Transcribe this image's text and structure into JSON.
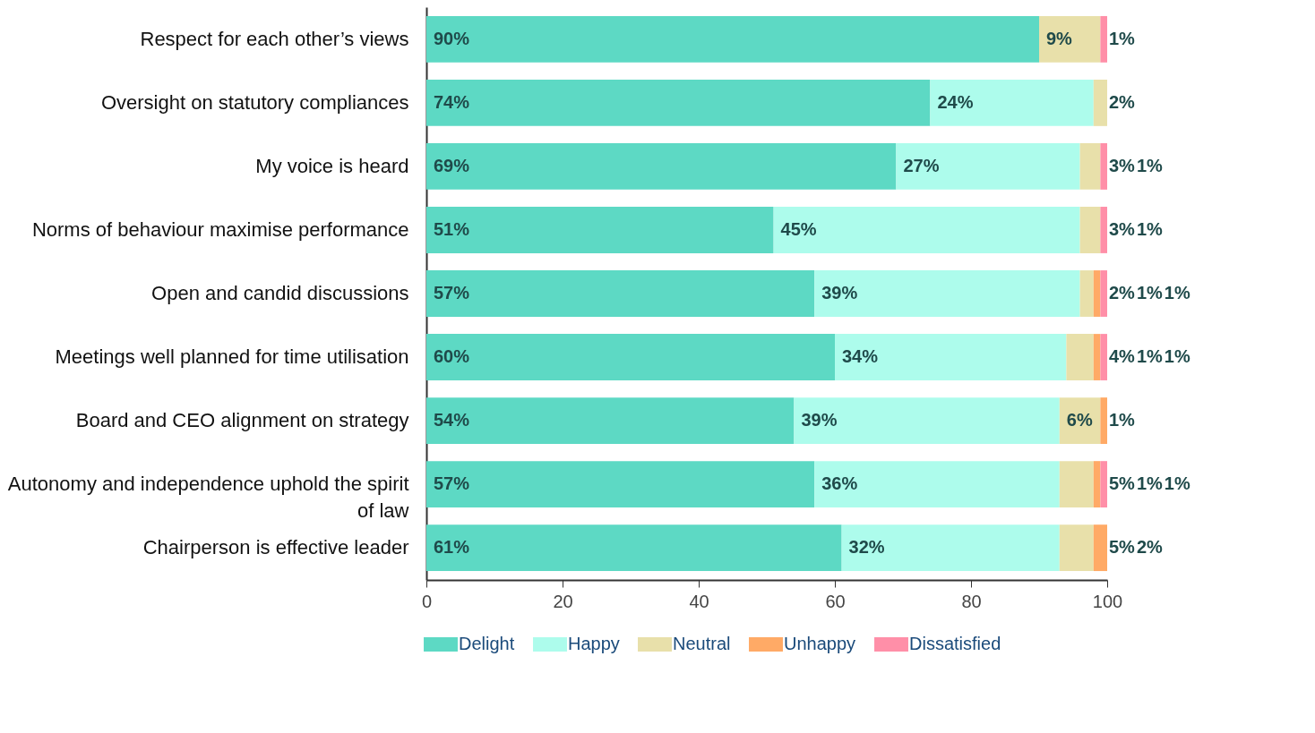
{
  "chart_data": {
    "type": "bar",
    "orientation": "horizontal",
    "stacked": true,
    "categories": [
      "Respect for each other’s views",
      "Oversight on statutory compliances",
      "My voice is heard",
      "Norms of behaviour maximise performance",
      "Open and candid discussions",
      "Meetings well planned for time utilisation",
      "Board and CEO alignment on strategy",
      "Autonomy and independence uphold the spirit of law",
      "Chairperson is effective leader"
    ],
    "series": [
      {
        "name": "Delight",
        "color": "#5dd9c4",
        "values": [
          90,
          74,
          69,
          51,
          57,
          60,
          54,
          57,
          61
        ],
        "value_labels": [
          "90%",
          "74%",
          "69%",
          "51%",
          "57%",
          "60%",
          "54%",
          "57%",
          "61%"
        ]
      },
      {
        "name": "Happy",
        "color": "#adfcec",
        "values": [
          null,
          24,
          27,
          45,
          39,
          34,
          39,
          36,
          32
        ],
        "value_labels": [
          null,
          "24%",
          "27%",
          "45%",
          "39%",
          "34%",
          "39%",
          "36%",
          "32%"
        ]
      },
      {
        "name": "Neutral",
        "color": "#e8e0aa",
        "values": [
          9,
          2,
          3,
          3,
          2,
          4,
          6,
          5,
          5
        ],
        "value_labels": [
          "9%",
          "2%",
          "3%",
          "3%",
          "2%",
          "4%",
          "6%",
          "5%",
          "5%"
        ]
      },
      {
        "name": "Unhappy",
        "color": "#ffaa66",
        "values": [
          null,
          null,
          null,
          null,
          1,
          1,
          1,
          1,
          2
        ],
        "value_labels": [
          null,
          null,
          null,
          null,
          "1%",
          "1%",
          "1%",
          "1%",
          "2%"
        ]
      },
      {
        "name": "Dissatisfied",
        "color": "#ff8fa8",
        "values": [
          1,
          null,
          1,
          1,
          1,
          1,
          null,
          1,
          null
        ],
        "value_labels": [
          "1%",
          null,
          "1%",
          "1%",
          "1%",
          "1%",
          null,
          "1%",
          null
        ]
      }
    ],
    "xlim": [
      0,
      100
    ],
    "xticks": [
      0,
      20,
      40,
      60,
      80,
      100
    ],
    "grid": false,
    "legend": "bottom"
  }
}
